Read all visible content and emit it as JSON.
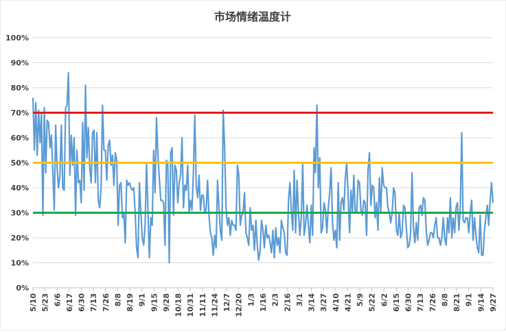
{
  "chart_data": {
    "type": "line",
    "title": "市场情绪温度计",
    "xlabel": "",
    "ylabel": "",
    "ylim": [
      0,
      100
    ],
    "y_ticks": [
      "0%",
      "10%",
      "20%",
      "30%",
      "40%",
      "50%",
      "60%",
      "70%",
      "80%",
      "90%",
      "100%"
    ],
    "x_tick_labels": [
      "5/10",
      "5/23",
      "6/6",
      "6/17",
      "6/30",
      "7/13",
      "7/26",
      "8/8",
      "8/19",
      "9/1",
      "9/15",
      "9/28",
      "10/18",
      "10/31",
      "11/11",
      "11/24",
      "12/7",
      "12/20",
      "1/3",
      "1/16",
      "2/3",
      "2/16",
      "3/1",
      "3/14",
      "3/27",
      "4/10",
      "4/21",
      "5/9",
      "5/22",
      "6/2",
      "6/15",
      "6/30",
      "7/13",
      "7/26",
      "8/8",
      "8/21",
      "9/1",
      "9/14",
      "9/27"
    ],
    "grid": true,
    "reference_lines": [
      {
        "value": 70,
        "color": "#e31a1c"
      },
      {
        "value": 50,
        "color": "#ffc000"
      },
      {
        "value": 30,
        "color": "#1aa64b"
      }
    ],
    "series": [
      {
        "color": "#5b9bd5",
        "values": [
          76,
          55,
          74,
          53,
          71,
          58,
          70,
          29,
          72,
          46,
          67,
          66,
          56,
          61,
          47,
          31,
          65,
          48,
          40,
          45,
          65,
          40,
          39,
          72,
          73,
          86,
          45,
          61,
          49,
          60,
          29,
          55,
          42,
          43,
          34,
          66,
          39,
          81,
          52,
          64,
          48,
          42,
          62,
          63,
          42,
          62,
          35,
          32,
          40,
          73,
          55,
          55,
          43,
          57,
          59,
          49,
          53,
          41,
          54,
          51,
          25,
          41,
          42,
          28,
          30,
          18,
          43,
          41,
          42,
          40,
          39,
          40,
          30,
          16,
          12,
          42,
          30,
          20,
          17,
          25,
          50,
          31,
          12,
          28,
          25,
          55,
          38,
          68,
          53,
          44,
          35,
          35,
          34,
          17,
          51,
          49,
          10,
          54,
          56,
          29,
          49,
          47,
          34,
          42,
          45,
          60,
          32,
          41,
          39,
          49,
          30,
          35,
          31,
          46,
          69,
          41,
          36,
          45,
          31,
          37,
          37,
          30,
          31,
          43,
          29,
          22,
          20,
          13,
          21,
          16,
          43,
          32,
          23,
          19,
          71,
          56,
          32,
          25,
          28,
          21,
          27,
          25,
          25,
          23,
          49,
          45,
          25,
          29,
          30,
          38,
          22,
          20,
          17,
          32,
          23,
          25,
          15,
          27,
          17,
          11,
          15,
          27,
          23,
          16,
          25,
          20,
          21,
          18,
          14,
          23,
          12,
          24,
          17,
          20,
          14,
          27,
          24,
          22,
          14,
          13,
          35,
          42,
          31,
          23,
          47,
          22,
          43,
          30,
          21,
          28,
          50,
          21,
          25,
          33,
          25,
          18,
          33,
          21,
          56,
          46,
          73,
          40,
          52,
          22,
          24,
          34,
          31,
          22,
          32,
          38,
          48,
          26,
          19,
          23,
          16,
          42,
          19,
          34,
          36,
          31,
          44,
          50,
          37,
          22,
          39,
          30,
          45,
          30,
          30,
          43,
          42,
          31,
          29,
          35,
          34,
          21,
          47,
          54,
          33,
          41,
          40,
          28,
          34,
          23,
          44,
          30,
          48,
          41,
          40,
          40,
          32,
          30,
          26,
          30,
          40,
          38,
          23,
          21,
          30,
          20,
          22,
          33,
          32,
          24,
          16,
          17,
          22,
          46,
          24,
          18,
          26,
          19,
          32,
          33,
          29,
          36,
          35,
          23,
          17,
          19,
          22,
          22,
          20,
          25,
          28,
          20,
          20,
          17,
          20,
          28,
          20,
          17,
          28,
          22,
          36,
          20,
          28,
          22,
          32,
          34,
          23,
          32,
          62,
          27,
          26,
          28,
          28,
          22,
          30,
          35,
          19,
          28,
          21,
          16,
          14,
          29,
          13,
          13,
          23,
          28,
          33,
          25,
          35,
          42,
          34
        ]
      }
    ]
  }
}
